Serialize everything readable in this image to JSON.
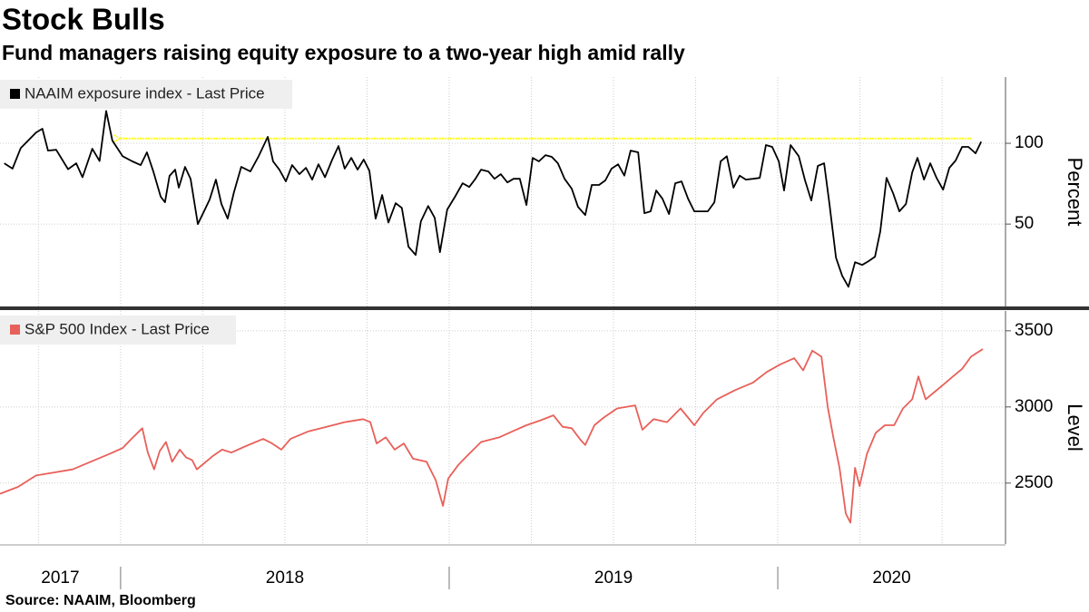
{
  "title": "Stock Bulls",
  "subtitle": "Fund managers raising equity exposure to a two-year high amid rally",
  "source": "Source: NAAIM, Bloomberg",
  "x_axis": {
    "xlim": [
      2017.633,
      2020.693
    ],
    "xticks": [
      2018,
      2019,
      2020
    ],
    "year_labels": [
      2017,
      2018,
      2019,
      2020
    ],
    "xgrid": [
      2017.75,
      2018,
      2018.25,
      2018.5,
      2018.75,
      2019,
      2019.25,
      2019.5,
      2019.75,
      2020,
      2020.25,
      2020.5
    ]
  },
  "chart_data": [
    {
      "type": "line",
      "ylabel": "Percent",
      "ylim": [
        -1,
        141
      ],
      "yticks": [
        50,
        100
      ],
      "grid": true,
      "x": [
        2017.646,
        2017.671,
        2017.696,
        2017.743,
        2017.762,
        2017.779,
        2017.804,
        2017.84,
        2017.865,
        2017.884,
        2017.914,
        2017.936,
        2017.956,
        2017.975,
        2018.006,
        2018.036,
        2018.061,
        2018.08,
        2018.099,
        2018.122,
        2018.135,
        2018.149,
        2018.166,
        2018.177,
        2018.196,
        2018.213,
        2018.235,
        2018.251,
        2018.271,
        2018.29,
        2018.307,
        2018.326,
        2018.345,
        2018.367,
        2018.395,
        2018.42,
        2018.448,
        2018.464,
        2018.483,
        2018.503,
        2018.522,
        2018.544,
        2018.564,
        2018.583,
        2018.602,
        2018.622,
        2018.644,
        2018.663,
        2018.682,
        2018.702,
        2018.721,
        2018.74,
        2018.757,
        2018.776,
        2018.796,
        2018.815,
        2018.837,
        2018.856,
        2018.876,
        2018.898,
        2018.914,
        2018.936,
        2018.956,
        2018.972,
        2018.994,
        2019.019,
        2019.041,
        2019.061,
        2019.08,
        2019.097,
        2019.119,
        2019.138,
        2019.157,
        2019.177,
        2019.196,
        2019.215,
        2019.235,
        2019.254,
        2019.273,
        2019.293,
        2019.312,
        2019.331,
        2019.351,
        2019.373,
        2019.392,
        2019.414,
        2019.434,
        2019.456,
        2019.475,
        2019.494,
        2019.514,
        2019.533,
        2019.552,
        2019.575,
        2019.594,
        2019.613,
        2019.63,
        2019.649,
        2019.669,
        2019.688,
        2019.707,
        2019.727,
        2019.746,
        2019.765,
        2019.787,
        2019.807,
        2019.826,
        2019.845,
        2019.865,
        2019.884,
        2019.903,
        2019.925,
        2019.945,
        2019.964,
        2019.983,
        2020.003,
        2020.019,
        2020.039,
        2020.064,
        2020.083,
        2020.102,
        2020.122,
        2020.141,
        2020.157,
        2020.177,
        2020.196,
        2020.215,
        2020.235,
        2020.257,
        2020.276,
        2020.296,
        2020.312,
        2020.331,
        2020.351,
        2020.37,
        2020.39,
        2020.409,
        2020.425,
        2020.445,
        2020.464,
        2020.483,
        2020.503,
        2020.522,
        2020.541,
        2020.561,
        2020.58,
        2020.602,
        2020.619
      ],
      "series": [
        {
          "name": "NAAIM exposure index - Last Price",
          "color": "#000000",
          "values": [
            87.6,
            84.3,
            97,
            106.7,
            109,
            95.5,
            96,
            84,
            87.6,
            79,
            96.6,
            89,
            120,
            101.7,
            92,
            88.8,
            86.5,
            94.4,
            83,
            66.9,
            63.5,
            79.8,
            83.7,
            72.5,
            85.4,
            78,
            50,
            56.7,
            65.2,
            77.5,
            62.4,
            53.4,
            69.7,
            85.4,
            82.6,
            92,
            104,
            88.8,
            83.7,
            76.4,
            86.5,
            80.9,
            84.8,
            77.5,
            87,
            79,
            89.9,
            98.3,
            84.3,
            91,
            83.7,
            89.9,
            83,
            53.4,
            68,
            51,
            62.9,
            60,
            36,
            30.9,
            51.7,
            61.2,
            53.9,
            32.6,
            59,
            67.4,
            75.3,
            73,
            78,
            83.7,
            82.6,
            78,
            80.9,
            75.8,
            78,
            78,
            61.8,
            91,
            88.8,
            92.7,
            91.6,
            87.6,
            78,
            71.9,
            60.7,
            55.6,
            74.2,
            74.2,
            77,
            84.3,
            87,
            80,
            95.5,
            94.4,
            56.7,
            57.9,
            70.8,
            65.7,
            56.2,
            75.3,
            76.4,
            65.7,
            57.9,
            57.9,
            57.9,
            63.5,
            88.8,
            92,
            72.5,
            80,
            77.5,
            78,
            78.6,
            98.9,
            97.8,
            88.8,
            70.8,
            98.9,
            92,
            77,
            64.6,
            86,
            87.6,
            62.9,
            29.2,
            18,
            11.2,
            26.4,
            24.7,
            27,
            29.8,
            45.5,
            78.6,
            69,
            57.9,
            62.4,
            82,
            91,
            77.5,
            87.6,
            78.6,
            71.3,
            84.8,
            89.3,
            97.8,
            97.8,
            93.8,
            101
          ]
        }
      ],
      "annotation_arrow": {
        "y": 103,
        "x_from": 2020.59,
        "x_to": 2018.0,
        "color": "#ffff00"
      }
    },
    {
      "type": "line",
      "ylabel": "Level",
      "ylim": [
        2100,
        3630
      ],
      "yticks": [
        2500,
        3000,
        3500
      ],
      "grid": true,
      "x": [
        2017.633,
        2017.688,
        2017.743,
        2017.798,
        2017.854,
        2017.909,
        2017.964,
        2018.006,
        2018.033,
        2018.066,
        2018.083,
        2018.102,
        2018.119,
        2018.138,
        2018.157,
        2018.18,
        2018.199,
        2018.218,
        2018.232,
        2018.254,
        2018.282,
        2018.309,
        2018.337,
        2018.378,
        2018.434,
        2018.461,
        2018.489,
        2018.517,
        2018.572,
        2018.627,
        2018.682,
        2018.738,
        2018.76,
        2018.779,
        2018.807,
        2018.834,
        2018.862,
        2018.89,
        2018.931,
        2018.959,
        2018.981,
        2018.997,
        2019.028,
        2019.055,
        2019.097,
        2019.152,
        2019.193,
        2019.235,
        2019.276,
        2019.317,
        2019.345,
        2019.373,
        2019.401,
        2019.414,
        2019.442,
        2019.47,
        2019.511,
        2019.566,
        2019.588,
        2019.622,
        2019.663,
        2019.704,
        2019.746,
        2019.773,
        2019.815,
        2019.87,
        2019.925,
        2019.967,
        2020.008,
        2020.05,
        2020.077,
        2020.105,
        2020.133,
        2020.152,
        2020.169,
        2020.188,
        2020.207,
        2020.221,
        2020.235,
        2020.249,
        2020.271,
        2020.298,
        2020.326,
        2020.354,
        2020.381,
        2020.409,
        2020.428,
        2020.45,
        2020.478,
        2020.506,
        2020.533,
        2020.561,
        2020.588,
        2020.624
      ],
      "series": [
        {
          "name": "S&P 500 Index - Last Price",
          "color": "#e8605a",
          "values": [
            2430,
            2475,
            2550,
            2570,
            2590,
            2640,
            2690,
            2730,
            2790,
            2860,
            2700,
            2590,
            2710,
            2770,
            2640,
            2720,
            2670,
            2650,
            2590,
            2630,
            2680,
            2720,
            2700,
            2740,
            2790,
            2760,
            2720,
            2790,
            2840,
            2870,
            2900,
            2920,
            2900,
            2760,
            2800,
            2720,
            2760,
            2660,
            2640,
            2520,
            2350,
            2530,
            2620,
            2680,
            2770,
            2800,
            2840,
            2880,
            2910,
            2945,
            2870,
            2860,
            2780,
            2750,
            2880,
            2930,
            2990,
            3010,
            2850,
            2920,
            2900,
            2990,
            2880,
            2960,
            3050,
            3110,
            3160,
            3230,
            3280,
            3320,
            3240,
            3370,
            3330,
            3000,
            2800,
            2600,
            2300,
            2240,
            2600,
            2480,
            2690,
            2830,
            2880,
            2880,
            2990,
            3050,
            3200,
            3050,
            3100,
            3150,
            3200,
            3250,
            3330,
            3380
          ]
        }
      ]
    }
  ]
}
